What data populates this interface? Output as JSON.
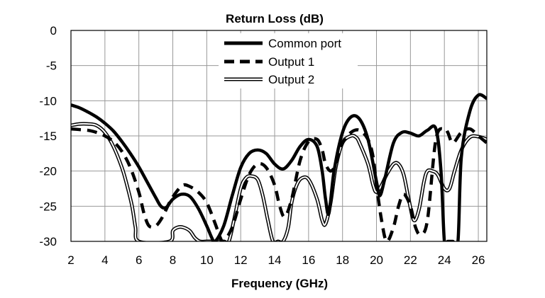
{
  "chart_data": {
    "type": "line",
    "title": "Return Loss (dB)",
    "xlabel": "Frequency (GHz)",
    "ylabel": "",
    "xlim": [
      2,
      26.5
    ],
    "ylim": [
      -30,
      0
    ],
    "x_ticks": [
      "2",
      "4",
      "6",
      "8",
      "10",
      "12",
      "14",
      "16",
      "18",
      "20",
      "22",
      "24",
      "26"
    ],
    "y_ticks": [
      "0",
      "-5",
      "-10",
      "-15",
      "-20",
      "-25",
      "-30"
    ],
    "grid": true,
    "legend_position": "top-center",
    "series": [
      {
        "name": "Common port",
        "style": "thick-solid",
        "x": [
          2,
          2.5,
          3,
          3.5,
          4,
          4.5,
          5,
          5.5,
          6,
          6.5,
          7,
          7.3,
          7.6,
          8,
          8.5,
          9,
          9.5,
          10,
          10.3,
          10.5,
          11,
          11.5,
          12,
          12.5,
          13,
          13.5,
          14,
          14.5,
          15,
          15.5,
          16,
          16.5,
          16.8,
          17,
          17.2,
          17.5,
          18,
          18.5,
          19,
          19.5,
          20,
          20.2,
          20.5,
          21,
          21.5,
          22,
          22.5,
          23,
          23.5,
          23.8,
          24,
          24.2,
          24.5,
          24.8,
          25,
          25.5,
          26,
          26.5
        ],
        "y": [
          -10.6,
          -11,
          -11.6,
          -12.3,
          -13.2,
          -14.3,
          -15.8,
          -17.5,
          -19.4,
          -21.6,
          -23.8,
          -25,
          -25.2,
          -24,
          -23.3,
          -23.6,
          -25.3,
          -27.8,
          -29.5,
          -30,
          -27.8,
          -23.5,
          -19.5,
          -17.5,
          -17,
          -17.5,
          -19,
          -19.7,
          -18.5,
          -16.5,
          -15.5,
          -16.5,
          -20,
          -24,
          -26,
          -20,
          -14.5,
          -12.3,
          -12.6,
          -15.5,
          -21.5,
          -23.5,
          -21,
          -16,
          -14.5,
          -14.6,
          -15,
          -14.2,
          -14,
          -20,
          -30,
          -30,
          -30,
          -30,
          -18,
          -11.5,
          -9.2,
          -9.7
        ]
      },
      {
        "name": "Output 1",
        "style": "thick-dashed",
        "x": [
          2,
          2.5,
          3,
          3.5,
          4,
          4.5,
          5,
          5.5,
          6,
          6.3,
          6.6,
          7,
          7.4,
          7.8,
          8.2,
          8.6,
          9,
          9.5,
          10,
          10.5,
          10.8,
          11,
          11.5,
          12,
          12.5,
          13,
          13.5,
          14,
          14.3,
          14.6,
          15,
          15.5,
          16,
          16.5,
          16.8,
          17,
          17.3,
          17.6,
          18,
          18.5,
          19,
          19.5,
          19.8,
          20,
          20.3,
          20.6,
          21,
          21.3,
          21.6,
          22,
          22.3,
          22.6,
          23,
          23.5,
          24,
          24.2,
          24.5,
          25,
          25.5,
          26,
          26.5
        ],
        "y": [
          -14,
          -14.1,
          -14.2,
          -14.5,
          -15,
          -15.8,
          -17.2,
          -19.5,
          -23,
          -26,
          -27.8,
          -27.8,
          -26.5,
          -24.5,
          -23,
          -22,
          -22.2,
          -23,
          -24.5,
          -27.5,
          -29.5,
          -30,
          -28,
          -24,
          -20.5,
          -19,
          -19.5,
          -22,
          -25,
          -26.5,
          -24,
          -18.5,
          -15.8,
          -15.5,
          -17,
          -19,
          -20,
          -19,
          -16,
          -14.5,
          -14.2,
          -15.5,
          -18,
          -22,
          -27,
          -30,
          -28,
          -25,
          -23.3,
          -25,
          -28,
          -29,
          -27,
          -15.5,
          -14,
          -14.5,
          -16,
          -14.5,
          -14,
          -15,
          -16
        ]
      },
      {
        "name": "Output 2",
        "style": "double-line",
        "x": [
          2,
          2.5,
          3,
          3.5,
          4,
          4.5,
          5,
          5.3,
          5.6,
          5.8,
          6,
          7.8,
          8,
          8.3,
          8.6,
          9,
          9.3,
          9.6,
          10,
          10.5,
          11,
          11.3,
          11.6,
          12,
          12.3,
          12.6,
          13,
          13.3,
          13.6,
          13.9,
          14.2,
          14.5,
          14.8,
          15,
          15.3,
          15.6,
          16,
          16.5,
          16.8,
          17,
          17.3,
          17.6,
          18,
          18.5,
          18.8,
          19,
          19.5,
          19.8,
          20,
          20.3,
          20.6,
          21,
          21.3,
          21.6,
          21.9,
          22.2,
          22.5,
          22.8,
          23,
          23.3,
          23.6,
          24,
          24.3,
          24.6,
          25,
          25.5,
          26,
          26.5
        ],
        "y": [
          -13.5,
          -13.3,
          -13.3,
          -13.5,
          -14.5,
          -16.5,
          -19.5,
          -22,
          -25,
          -28,
          -30,
          -30,
          -28.5,
          -28,
          -28,
          -28.5,
          -29.5,
          -30,
          -30,
          -30,
          -30,
          -30,
          -27,
          -22.5,
          -21,
          -20.7,
          -21.2,
          -23.5,
          -27,
          -30,
          -30,
          -30,
          -28,
          -24.5,
          -22,
          -21,
          -21.2,
          -24,
          -27,
          -27.5,
          -24.5,
          -19.5,
          -16,
          -15,
          -15.2,
          -16,
          -19,
          -22,
          -23,
          -22,
          -20.5,
          -19,
          -19,
          -20.5,
          -24,
          -27,
          -25.5,
          -21.5,
          -20,
          -20,
          -20.5,
          -22.5,
          -22.5,
          -20,
          -17,
          -15.2,
          -15.1,
          -15.5
        ]
      }
    ]
  }
}
